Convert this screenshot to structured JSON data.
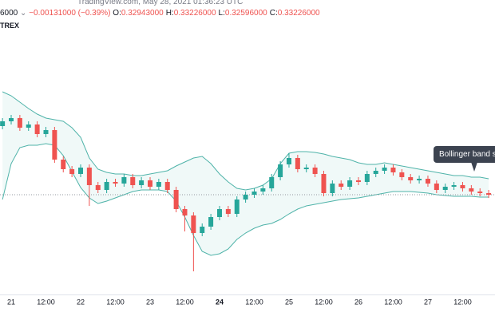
{
  "header": {
    "watermark": "TradingView.com, May 28, 2021 01:36:23 UTC",
    "price": "6000",
    "change": "−0.00131000 (−0.39%)",
    "ohlc": [
      {
        "key": "O:",
        "value": "0.32943000"
      },
      {
        "key": "H:",
        "value": "0.33226000"
      },
      {
        "key": "L:",
        "value": "0.32596000"
      },
      {
        "key": "C:",
        "value": "0.33226000"
      }
    ],
    "exchange": "TREX"
  },
  "chart_data": {
    "type": "candlestick",
    "annotation": "Bollinger band squ",
    "up_color": "#26a69a",
    "down_color": "#ef5350",
    "grid": false,
    "xlim": [
      20.839,
      27.966
    ],
    "ylim": [
      0.3069,
      0.3749
    ],
    "xticks": [
      {
        "value": 21,
        "label": "21"
      },
      {
        "value": 21.5,
        "label": "12:00"
      },
      {
        "value": 22,
        "label": "22"
      },
      {
        "value": 22.5,
        "label": "12:00"
      },
      {
        "value": 23,
        "label": "23"
      },
      {
        "value": 23.5,
        "label": "12:00"
      },
      {
        "value": 24,
        "label": "24",
        "emphasis": true
      },
      {
        "value": 24.5,
        "label": "12:00"
      },
      {
        "value": 25,
        "label": "25"
      },
      {
        "value": 25.5,
        "label": "12:00"
      },
      {
        "value": 26,
        "label": "26"
      },
      {
        "value": 26.5,
        "label": "12:00"
      },
      {
        "value": 27,
        "label": "27"
      },
      {
        "value": 27.5,
        "label": "12:00"
      }
    ],
    "x": [
      20.875,
      21,
      21.125,
      21.25,
      21.375,
      21.5,
      21.625,
      21.75,
      21.875,
      22,
      22.125,
      22.25,
      22.375,
      22.5,
      22.625,
      22.75,
      22.875,
      23,
      23.125,
      23.25,
      23.375,
      23.5,
      23.625,
      23.75,
      23.875,
      24,
      24.125,
      24.25,
      24.375,
      24.5,
      24.625,
      24.75,
      24.875,
      25,
      25.125,
      25.25,
      25.375,
      25.5,
      25.625,
      25.75,
      25.875,
      26,
      26.125,
      26.25,
      26.375,
      26.5,
      26.625,
      26.75,
      26.875,
      27,
      27.125,
      27.25,
      27.375,
      27.5,
      27.625,
      27.75,
      27.875
    ],
    "open": [
      0.3493,
      0.3505,
      0.3513,
      0.3489,
      0.3497,
      0.3473,
      0.3483,
      0.3409,
      0.3385,
      0.3373,
      0.3389,
      0.3345,
      0.3333,
      0.3353,
      0.3349,
      0.3365,
      0.3345,
      0.3357,
      0.3341,
      0.3353,
      0.3333,
      0.3285,
      0.3269,
      0.3225,
      0.3241,
      0.3265,
      0.3285,
      0.3273,
      0.3309,
      0.3321,
      0.3329,
      0.3337,
      0.3365,
      0.3397,
      0.3413,
      0.3385,
      0.3389,
      0.3373,
      0.3325,
      0.3349,
      0.3341,
      0.3357,
      0.3353,
      0.3373,
      0.3381,
      0.3389,
      0.3377,
      0.3365,
      0.3357,
      0.3361,
      0.3349,
      0.3333,
      0.3341,
      0.3345,
      0.3337,
      0.3329,
      0.3325
    ],
    "high": [
      0.3513,
      0.3521,
      0.3521,
      0.3505,
      0.3505,
      0.3491,
      0.3491,
      0.3417,
      0.3393,
      0.3397,
      0.3397,
      0.3353,
      0.3361,
      0.3361,
      0.3373,
      0.3373,
      0.3365,
      0.3365,
      0.3361,
      0.3361,
      0.3341,
      0.3293,
      0.3277,
      0.3249,
      0.3273,
      0.3293,
      0.3293,
      0.3317,
      0.3329,
      0.3337,
      0.3345,
      0.3373,
      0.3405,
      0.3425,
      0.3421,
      0.3397,
      0.3397,
      0.3381,
      0.3357,
      0.3357,
      0.3365,
      0.3365,
      0.3381,
      0.3389,
      0.3397,
      0.3397,
      0.3385,
      0.3373,
      0.3369,
      0.3369,
      0.3357,
      0.3349,
      0.3353,
      0.3353,
      0.3345,
      0.3337,
      0.3333
    ],
    "low": [
      0.3485,
      0.3497,
      0.3481,
      0.3481,
      0.3465,
      0.3465,
      0.3401,
      0.3377,
      0.3365,
      0.3365,
      0.3293,
      0.3325,
      0.3325,
      0.3341,
      0.3341,
      0.3337,
      0.3337,
      0.3333,
      0.3333,
      0.3325,
      0.3277,
      0.3229,
      0.3129,
      0.3217,
      0.3233,
      0.3257,
      0.3265,
      0.3265,
      0.3301,
      0.3313,
      0.3321,
      0.3329,
      0.3357,
      0.3389,
      0.3377,
      0.3377,
      0.3365,
      0.3317,
      0.3317,
      0.3333,
      0.3333,
      0.3345,
      0.3345,
      0.3365,
      0.3373,
      0.3369,
      0.3357,
      0.3349,
      0.3349,
      0.3341,
      0.3325,
      0.3325,
      0.3333,
      0.3329,
      0.3321,
      0.3317,
      0.3313
    ],
    "close": [
      0.3505,
      0.3513,
      0.3489,
      0.3497,
      0.3473,
      0.3483,
      0.3409,
      0.3385,
      0.3373,
      0.3389,
      0.3345,
      0.3333,
      0.3353,
      0.3349,
      0.3365,
      0.3345,
      0.3357,
      0.3341,
      0.3353,
      0.3333,
      0.3285,
      0.3269,
      0.3225,
      0.3241,
      0.3265,
      0.3285,
      0.3273,
      0.3309,
      0.3321,
      0.3329,
      0.3337,
      0.3365,
      0.3397,
      0.3413,
      0.3385,
      0.3389,
      0.3373,
      0.3325,
      0.3349,
      0.3341,
      0.3357,
      0.3353,
      0.3373,
      0.3381,
      0.3389,
      0.3377,
      0.3365,
      0.3357,
      0.3361,
      0.3349,
      0.3333,
      0.3341,
      0.3345,
      0.3337,
      0.3329,
      0.3325,
      0.3321
    ],
    "bands": [
      {
        "color": "#4fb3a9",
        "values": [
          0.3579,
          0.3569,
          0.3553,
          0.3537,
          0.3523,
          0.3513,
          0.3509,
          0.3505,
          0.3489,
          0.3465,
          0.3413,
          0.3385,
          0.3377,
          0.3373,
          0.3373,
          0.3369,
          0.3369,
          0.3373,
          0.3377,
          0.3381,
          0.3393,
          0.3403,
          0.3413,
          0.3417,
          0.3399,
          0.3373,
          0.3353,
          0.3337,
          0.3333,
          0.3337,
          0.3345,
          0.3361,
          0.3399,
          0.3425,
          0.3429,
          0.3429,
          0.3427,
          0.3423,
          0.3417,
          0.3413,
          0.3409,
          0.3401,
          0.3397,
          0.3397,
          0.3401,
          0.3397,
          0.3393,
          0.3389,
          0.3385,
          0.3381,
          0.3377,
          0.3373,
          0.3369,
          0.3369,
          0.3365,
          0.3365,
          0.3361
        ]
      },
      {
        "color": "#4fb3a9",
        "values": [
          0.3309,
          0.3399,
          0.3439,
          0.3445,
          0.3445,
          0.3449,
          0.3445,
          0.3419,
          0.3379,
          0.3339,
          0.3313,
          0.3299,
          0.3305,
          0.3313,
          0.3321,
          0.3329,
          0.3333,
          0.3333,
          0.3333,
          0.3329,
          0.3305,
          0.3265,
          0.3219,
          0.3179,
          0.3169,
          0.3173,
          0.3185,
          0.3209,
          0.3225,
          0.3237,
          0.3245,
          0.3249,
          0.3259,
          0.3273,
          0.3285,
          0.3293,
          0.3297,
          0.3301,
          0.3305,
          0.3309,
          0.3311,
          0.3313,
          0.3317,
          0.3321,
          0.3325,
          0.3329,
          0.3329,
          0.3329,
          0.3327,
          0.3325,
          0.3321,
          0.3319,
          0.3317,
          0.3317,
          0.3317,
          0.3315,
          0.3315
        ]
      }
    ]
  }
}
